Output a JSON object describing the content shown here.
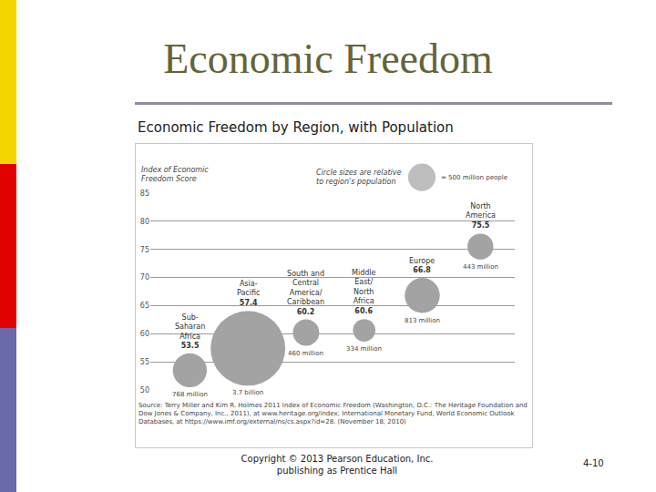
{
  "slide": {
    "title": "Economic Freedom",
    "subtitle": "Economic Freedom by Region, with Population",
    "footer": [
      "Copyright © 2013 Pearson Education, Inc.",
      "publishing as Prentice Hall"
    ],
    "page": "4-10"
  },
  "chart_data": {
    "type": "scatter",
    "marker": "bubble",
    "ylabel": "Index of Economic Freedom Score",
    "categories": [
      "Sub-Saharan Africa",
      "Asia-Pacific",
      "South and Central America/Caribbean",
      "Middle East/North Africa",
      "Europe",
      "North America"
    ],
    "values": [
      53.5,
      57.4,
      60.2,
      60.6,
      66.8,
      75.5
    ],
    "sizes": [
      768,
      3700,
      460,
      334,
      813,
      443
    ],
    "size_labels": [
      "768 million",
      "3.7 billion",
      "460 million",
      "334 million",
      "813 million",
      "443 million"
    ],
    "size_legend": {
      "text": "Circle sizes are relative to region's population",
      "value": 500,
      "label": "= 500 million people"
    },
    "data_labels": true,
    "tick_labels": "y",
    "ylim": [
      50,
      85
    ],
    "yticks": [
      50,
      55,
      60,
      65,
      70,
      75,
      80,
      85
    ],
    "grid": true,
    "color": "#a3a3a3",
    "source": "Source: Terry Miller and Kim R. Holmes 2011 Index of Economic Freedom (Washington, D.C.: The Heritage Foundation and Dow Jones & Company, Inc., 2011), at www.heritage.org/index; International Monetary Fund, World Economic Outlook Databases, at https://www.imf.org/external/ns/cs.aspx?id=28. (November 18, 2010)"
  }
}
